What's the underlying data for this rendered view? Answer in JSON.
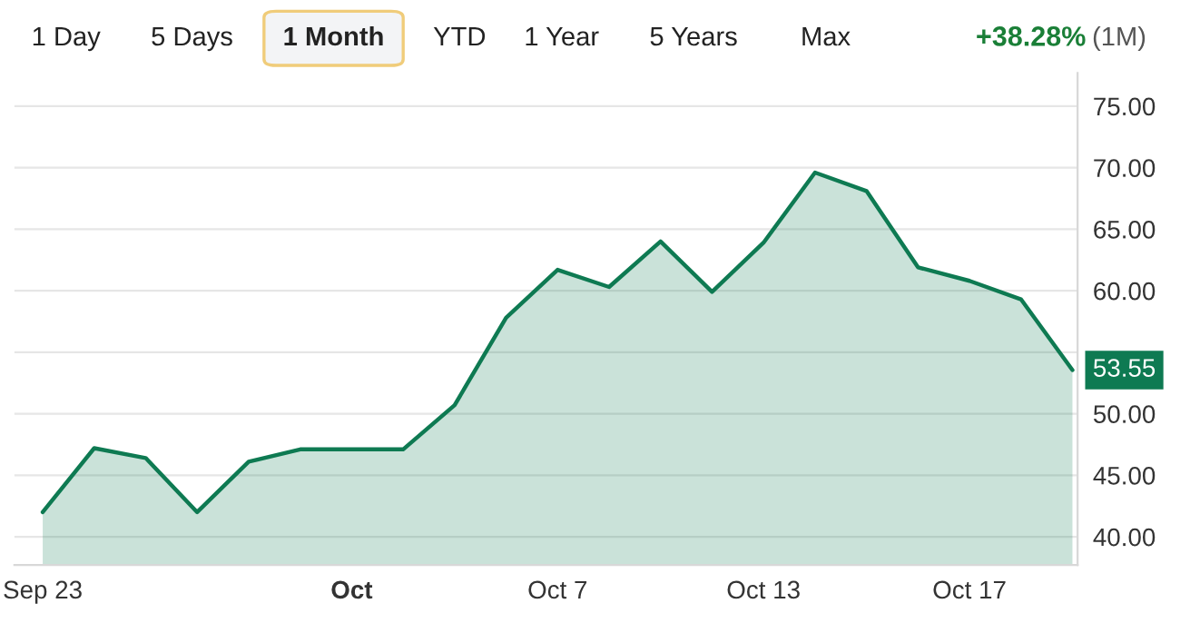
{
  "chart_data": {
    "type": "area",
    "title": null,
    "annotations": [
      "1 Day",
      "5 Days",
      "1 Month",
      "YTD",
      "1 Year",
      "5 Years",
      "Max",
      "+38.28%",
      "(1M)",
      "53.55"
    ],
    "categories": [
      "Sep 23",
      null,
      null,
      null,
      null,
      null,
      "Oct",
      null,
      null,
      null,
      "Oct 7",
      null,
      null,
      null,
      "Oct 13",
      null,
      null,
      null,
      "Oct 17",
      null,
      null
    ],
    "series": [
      {
        "color": "#0e7a52",
        "values": [
          42.0,
          47.2,
          46.4,
          42.0,
          46.1,
          47.1,
          47.1,
          47.1,
          50.7,
          57.8,
          61.7,
          60.3,
          64.0,
          59.9,
          63.9,
          69.6,
          68.1,
          61.9,
          60.8,
          59.3,
          53.55
        ]
      }
    ],
    "ylim": [
      37.7,
      77.7
    ],
    "yticks": [
      {
        "value": 40,
        "label": "40.00"
      },
      {
        "value": 45,
        "label": "45.00"
      },
      {
        "value": 50,
        "label": "50.00"
      },
      {
        "value": 55,
        "label": null
      },
      {
        "value": 60,
        "label": "60.00"
      },
      {
        "value": 65,
        "label": "65.00"
      },
      {
        "value": 70,
        "label": "70.00"
      },
      {
        "value": 75,
        "label": "75.00"
      }
    ],
    "grid": "y",
    "legend": false
  }
}
